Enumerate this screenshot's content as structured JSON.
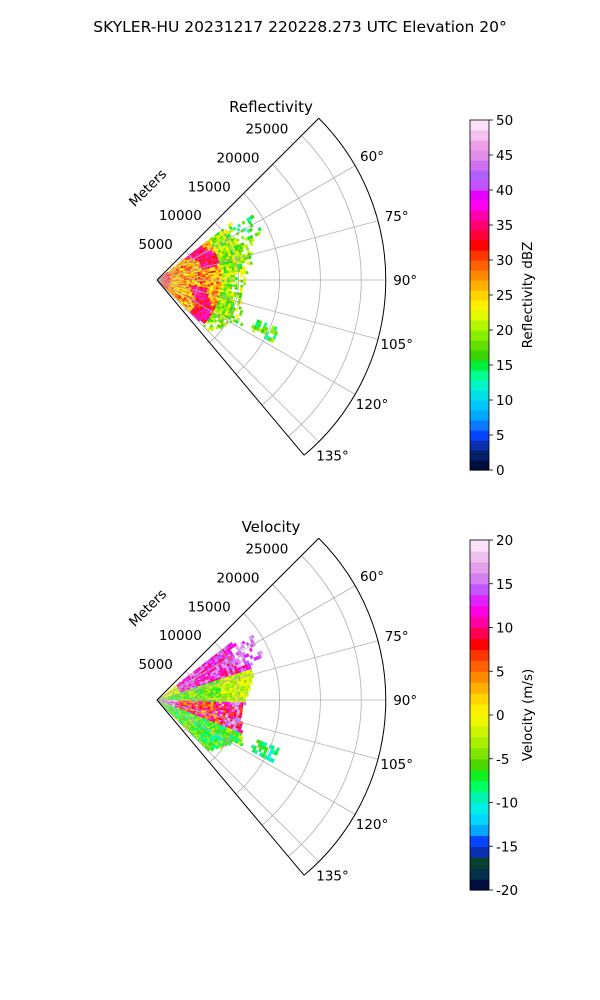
{
  "suptitle": "SKYLER-HU  20231217  220228.273 UTC Elevation 20°",
  "colors": {
    "grid": "#b0b0b0",
    "frame": "#000000",
    "reflectivity_scale": [
      "#000d40",
      "#081e66",
      "#0a2fb0",
      "#0645ff",
      "#0a78ff",
      "#00a8ff",
      "#00c8ff",
      "#00e0e8",
      "#00f5c8",
      "#00ff90",
      "#00f03a",
      "#3ad400",
      "#62e000",
      "#8aee00",
      "#b6f500",
      "#e2fb00",
      "#fff000",
      "#ffd400",
      "#ffb000",
      "#ff8a00",
      "#ff6000",
      "#ff3500",
      "#ff0000",
      "#ff0038",
      "#ff0070",
      "#ff00b0",
      "#ff00ee",
      "#e600ff",
      "#c450ff",
      "#b060ff",
      "#d070f0",
      "#e08ee8",
      "#ec9ee6",
      "#f4c2f0",
      "#fbe2fa"
    ],
    "velocity_scale": [
      "#000d40",
      "#03304a",
      "#083f2e",
      "#0a2fb0",
      "#0645ff",
      "#00a8ff",
      "#00d8ff",
      "#00f0e8",
      "#00f5b0",
      "#00ff60",
      "#10f020",
      "#4ad800",
      "#7ee600",
      "#a8f000",
      "#cef500",
      "#f0f800",
      "#fff000",
      "#ffd400",
      "#ffb000",
      "#ff8a00",
      "#ff6000",
      "#ff3500",
      "#ff0000",
      "#ff0050",
      "#ff00a0",
      "#ff00e0",
      "#e020ff",
      "#c455ff",
      "#d480f0",
      "#e4a0ea",
      "#f0c0f0",
      "#fbe2fa"
    ]
  },
  "chart_data": [
    {
      "type": "heatmap",
      "subtype": "polar-sector",
      "title": "Reflectivity",
      "r_axis_label": "Meters",
      "r_ticks": [
        5000,
        10000,
        15000,
        20000,
        25000
      ],
      "r_tick_labels": [
        "5000",
        "10000",
        "15000",
        "20000",
        "25000"
      ],
      "r_max": 28000,
      "theta_range_deg": [
        45,
        140
      ],
      "theta_ticks_deg": [
        60,
        75,
        90,
        105,
        120,
        135
      ],
      "theta_tick_labels": [
        "60°",
        "75°",
        "90°",
        "105°",
        "120°",
        "135°"
      ],
      "grid": true,
      "colorbar": {
        "label": "Reflectivity dBZ",
        "range": [
          0,
          50
        ],
        "ticks": [
          0,
          5,
          10,
          15,
          20,
          25,
          30,
          35,
          40,
          45,
          50
        ],
        "tick_labels": [
          "0",
          "5",
          "10",
          "15",
          "20",
          "25",
          "30",
          "35",
          "40",
          "45",
          "50"
        ]
      },
      "data_extent": {
        "theta_deg": [
          52,
          133
        ],
        "r_m": [
          0,
          16000
        ],
        "notes": "Strongest echoes (30-40 dBZ) within ~8000 m; 15-25 dBZ to ~12000 m; isolated 15-20 dBZ clusters at 112-118° near 14000-16000 m"
      }
    },
    {
      "type": "heatmap",
      "subtype": "polar-sector",
      "title": "Velocity",
      "r_axis_label": "Meters",
      "r_ticks": [
        5000,
        10000,
        15000,
        20000,
        25000
      ],
      "r_tick_labels": [
        "5000",
        "10000",
        "15000",
        "20000",
        "25000"
      ],
      "r_max": 28000,
      "theta_range_deg": [
        45,
        140
      ],
      "theta_ticks_deg": [
        60,
        75,
        90,
        105,
        120,
        135
      ],
      "theta_tick_labels": [
        "60°",
        "75°",
        "90°",
        "105°",
        "120°",
        "135°"
      ],
      "grid": true,
      "colorbar": {
        "label": "Velocity (m/s)",
        "range": [
          -20,
          20
        ],
        "ticks": [
          -20,
          -15,
          -10,
          -5,
          0,
          5,
          10,
          15,
          20
        ],
        "tick_labels": [
          "-20",
          "-15",
          "-10",
          "-5",
          "0",
          "5",
          "10",
          "15",
          "20"
        ]
      },
      "data_extent": {
        "theta_deg": [
          52,
          133
        ],
        "r_m": [
          0,
          16000
        ],
        "notes": "Outbound 10-15 m/s near 60-75°, inbound -5 to -10 m/s near 80-90°, outbound 5-18 m/s at 95-110°, -5 to -12 m/s beyond 13000 m at 112-118°"
      }
    }
  ]
}
